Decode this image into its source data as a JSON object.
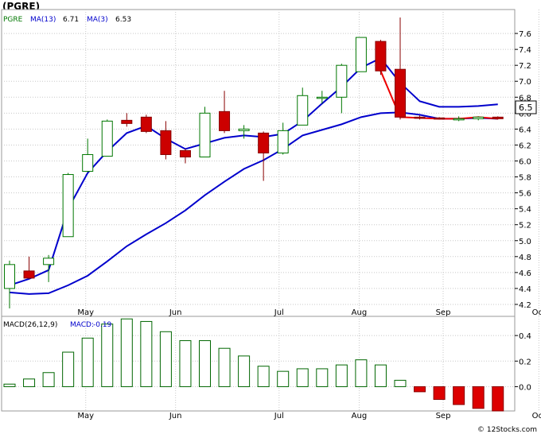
{
  "title": "(PGRE)",
  "footer": "© 12Stocks.com",
  "colors": {
    "up": "#007700",
    "down": "#cc0000",
    "ma13": "#0000cc",
    "ma3": "#ee0000",
    "grid": "#c8c8c8",
    "macd_bar": "#006600",
    "macd_neg": "#dd0000"
  },
  "chart_data": [
    {
      "type": "candlestick",
      "legend": {
        "symbol": "PGRE",
        "ma13_label": "MA(13)",
        "ma13_value": "6.71",
        "ma3_label": "MA(3)",
        "ma3_value": "6.53"
      },
      "months": [
        "May",
        "Jun",
        "Jul",
        "Aug",
        "Sep",
        "Oct"
      ],
      "month_positions": [
        3.9,
        8.5,
        13.8,
        17.9,
        22.2,
        27.1
      ],
      "ylim": [
        4.05,
        7.9
      ],
      "yticks": [
        4.2,
        4.4,
        4.6,
        4.8,
        5.0,
        5.2,
        5.4,
        5.6,
        5.8,
        6.0,
        6.2,
        6.4,
        6.6,
        6.8,
        7.0,
        7.2,
        7.4,
        7.6
      ],
      "last_price": "6.5",
      "candles": [
        {
          "o": 4.4,
          "h": 4.75,
          "l": 4.15,
          "c": 4.7
        },
        {
          "o": 4.62,
          "h": 4.8,
          "l": 4.52,
          "c": 4.53
        },
        {
          "o": 4.7,
          "h": 4.82,
          "l": 4.48,
          "c": 4.78
        },
        {
          "o": 5.05,
          "h": 5.85,
          "l": 5.05,
          "c": 5.83
        },
        {
          "o": 5.87,
          "h": 6.28,
          "l": 5.86,
          "c": 6.08
        },
        {
          "o": 6.06,
          "h": 6.52,
          "l": 6.06,
          "c": 6.5
        },
        {
          "o": 6.51,
          "h": 6.6,
          "l": 6.43,
          "c": 6.47
        },
        {
          "o": 6.55,
          "h": 6.58,
          "l": 6.35,
          "c": 6.37
        },
        {
          "o": 6.38,
          "h": 6.5,
          "l": 6.02,
          "c": 6.08
        },
        {
          "o": 6.13,
          "h": 6.15,
          "l": 5.97,
          "c": 6.05
        },
        {
          "o": 6.05,
          "h": 6.68,
          "l": 6.05,
          "c": 6.6
        },
        {
          "o": 6.62,
          "h": 6.88,
          "l": 6.35,
          "c": 6.38
        },
        {
          "o": 6.38,
          "h": 6.45,
          "l": 6.28,
          "c": 6.4
        },
        {
          "o": 6.35,
          "h": 6.37,
          "l": 5.75,
          "c": 6.1
        },
        {
          "o": 6.1,
          "h": 6.48,
          "l": 6.08,
          "c": 6.38
        },
        {
          "o": 6.45,
          "h": 6.92,
          "l": 6.45,
          "c": 6.82
        },
        {
          "o": 6.8,
          "h": 6.88,
          "l": 6.72,
          "c": 6.8
        },
        {
          "o": 6.8,
          "h": 7.22,
          "l": 6.6,
          "c": 7.2
        },
        {
          "o": 7.12,
          "h": 7.55,
          "l": 7.12,
          "c": 7.55
        },
        {
          "o": 7.5,
          "h": 7.52,
          "l": 7.08,
          "c": 7.13
        },
        {
          "o": 7.15,
          "h": 7.8,
          "l": 6.52,
          "c": 6.55
        },
        {
          "o": 6.55,
          "h": 6.57,
          "l": 6.52,
          "c": 6.54
        },
        {
          "o": 6.54,
          "h": 6.55,
          "l": 6.52,
          "c": 6.53
        },
        {
          "o": 6.53,
          "h": 6.56,
          "l": 6.5,
          "c": 6.53
        },
        {
          "o": 6.53,
          "h": 6.56,
          "l": 6.51,
          "c": 6.55
        },
        {
          "o": 6.55,
          "h": 6.56,
          "l": 6.52,
          "c": 6.53
        }
      ],
      "ma13": [
        {
          "x": 0,
          "y": 4.44
        },
        {
          "x": 1,
          "y": 4.52
        },
        {
          "x": 2,
          "y": 4.63
        },
        {
          "x": 3,
          "y": 5.4
        },
        {
          "x": 4,
          "y": 5.85
        },
        {
          "x": 5,
          "y": 6.12
        },
        {
          "x": 6,
          "y": 6.35
        },
        {
          "x": 7,
          "y": 6.44
        },
        {
          "x": 8,
          "y": 6.28
        },
        {
          "x": 9,
          "y": 6.15
        },
        {
          "x": 10,
          "y": 6.22
        },
        {
          "x": 11,
          "y": 6.29
        },
        {
          "x": 12,
          "y": 6.32
        },
        {
          "x": 13,
          "y": 6.3
        },
        {
          "x": 14,
          "y": 6.34
        },
        {
          "x": 15,
          "y": 6.5
        },
        {
          "x": 16,
          "y": 6.72
        },
        {
          "x": 17,
          "y": 6.93
        },
        {
          "x": 18,
          "y": 7.17
        },
        {
          "x": 19,
          "y": 7.29
        },
        {
          "x": 20,
          "y": 6.98
        },
        {
          "x": 21,
          "y": 6.75
        },
        {
          "x": 22,
          "y": 6.68
        },
        {
          "x": 23,
          "y": 6.68
        },
        {
          "x": 24,
          "y": 6.69
        },
        {
          "x": 25,
          "y": 6.71
        }
      ],
      "ma3": [
        {
          "x": 0,
          "y": 4.35
        },
        {
          "x": 1,
          "y": 4.33
        },
        {
          "x": 2,
          "y": 4.34
        },
        {
          "x": 3,
          "y": 4.44
        },
        {
          "x": 4,
          "y": 4.56
        },
        {
          "x": 5,
          "y": 4.74
        },
        {
          "x": 6,
          "y": 4.93
        },
        {
          "x": 7,
          "y": 5.08
        },
        {
          "x": 8,
          "y": 5.22
        },
        {
          "x": 9,
          "y": 5.38
        },
        {
          "x": 10,
          "y": 5.57
        },
        {
          "x": 11,
          "y": 5.74
        },
        {
          "x": 12,
          "y": 5.9
        },
        {
          "x": 13,
          "y": 6.01
        },
        {
          "x": 14,
          "y": 6.15
        },
        {
          "x": 15,
          "y": 6.32
        },
        {
          "x": 16,
          "y": 6.39
        },
        {
          "x": 17,
          "y": 6.46
        },
        {
          "x": 18,
          "y": 6.55
        },
        {
          "x": 19,
          "y": 6.6
        },
        {
          "x": 20,
          "y": 6.61
        },
        {
          "x": 21,
          "y": 6.58
        },
        {
          "x": 22,
          "y": 6.53
        },
        {
          "x": 23,
          "y": 6.53
        },
        {
          "x": 24,
          "y": 6.54
        },
        {
          "x": 25,
          "y": 6.53
        }
      ]
    },
    {
      "type": "bar",
      "legend": {
        "label": "MACD(26,12,9)",
        "value_label": "MACD:",
        "value": "-0.19"
      },
      "months": [
        "May",
        "Jun",
        "Jul",
        "Aug",
        "Sep",
        "Oct"
      ],
      "month_positions": [
        3.9,
        8.5,
        13.8,
        17.9,
        22.2,
        27.1
      ],
      "ylim": [
        -0.19,
        0.55
      ],
      "yticks": [
        "0.4",
        "0.2",
        "0.0"
      ],
      "ytick_values": [
        0.4,
        0.2,
        0.0
      ],
      "values": [
        0.02,
        0.06,
        0.11,
        0.27,
        0.38,
        0.49,
        0.53,
        0.51,
        0.43,
        0.36,
        0.36,
        0.3,
        0.24,
        0.16,
        0.12,
        0.14,
        0.14,
        0.17,
        0.21,
        0.17,
        0.05,
        -0.04,
        -0.1,
        -0.14,
        -0.17,
        -0.19
      ]
    }
  ]
}
